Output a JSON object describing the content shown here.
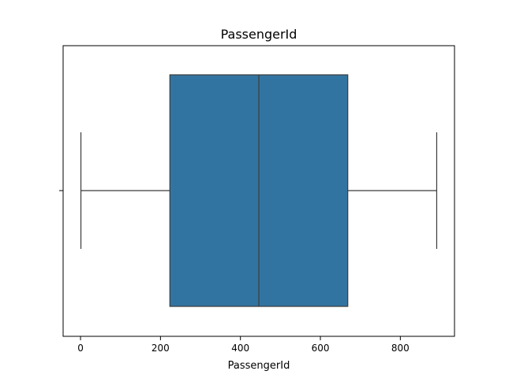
{
  "chart_data": {
    "type": "box",
    "title": "PassengerId",
    "xlabel": "PassengerId",
    "ylabel": "",
    "orientation": "horizontal",
    "xlim": [
      -43.5,
      935.5
    ],
    "x_ticks": [
      0,
      200,
      400,
      600,
      800
    ],
    "grid": false,
    "legend": "none",
    "box": {
      "whisker_low": 1,
      "q1": 223.5,
      "median": 446,
      "q3": 668.5,
      "whisker_high": 891,
      "outliers": []
    },
    "colors": {
      "box_fill": "#3274a1",
      "line": "#3b3b3b",
      "axis": "#000000"
    }
  }
}
